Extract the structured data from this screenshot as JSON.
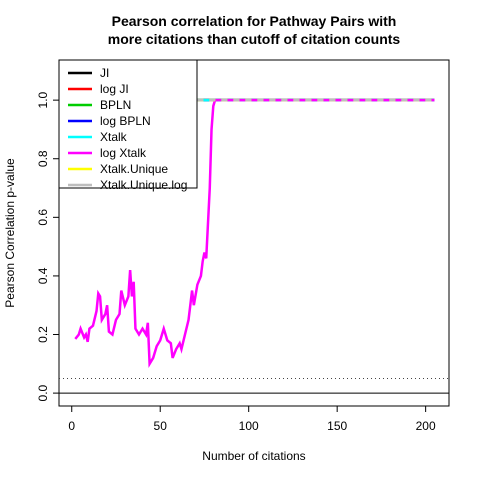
{
  "chart_data": {
    "type": "line",
    "title": [
      "Pearson correlation for Pathway Pairs with",
      "more citations than cutoff of citation counts"
    ],
    "xlabel": "Number of citations",
    "ylabel": "Pearson Correlation p-value",
    "x": [
      2,
      4,
      5,
      7,
      8,
      9,
      10,
      12,
      14,
      15,
      16,
      17,
      19,
      20,
      21,
      23,
      25,
      27,
      28,
      30,
      32,
      33,
      34,
      35,
      36,
      38,
      40,
      42,
      43,
      44,
      46,
      48,
      50,
      52,
      54,
      56,
      57,
      59,
      61,
      62,
      64,
      66,
      68,
      69,
      71,
      73,
      74,
      75,
      76,
      78,
      79,
      80,
      81,
      100,
      150,
      205
    ],
    "series": [
      {
        "name": "JI",
        "color": "#000000",
        "values": [
          null,
          null,
          null,
          null,
          null,
          null,
          null,
          null,
          null,
          null,
          null,
          null,
          null,
          null,
          null,
          null,
          null,
          null,
          null,
          null,
          null,
          null,
          null,
          null,
          null,
          null,
          null,
          null,
          null,
          null,
          null,
          null,
          null,
          null,
          null,
          null,
          null,
          null,
          null,
          null,
          null,
          null,
          null,
          null,
          1,
          1,
          1,
          1,
          1,
          1,
          1,
          1,
          1,
          1,
          1,
          1
        ]
      },
      {
        "name": "log JI",
        "color": "#ff0000",
        "values": [
          null,
          null,
          null,
          null,
          null,
          null,
          null,
          null,
          null,
          null,
          null,
          null,
          null,
          null,
          null,
          null,
          null,
          null,
          null,
          null,
          null,
          null,
          null,
          null,
          null,
          null,
          null,
          null,
          null,
          null,
          null,
          null,
          null,
          null,
          null,
          null,
          null,
          null,
          null,
          null,
          null,
          null,
          null,
          null,
          1,
          1,
          1,
          1,
          1,
          1,
          1,
          1,
          1,
          1,
          1,
          1
        ]
      },
      {
        "name": "BPLN",
        "color": "#00cd00",
        "values": [
          null,
          null,
          null,
          null,
          null,
          null,
          null,
          null,
          null,
          null,
          null,
          null,
          null,
          null,
          null,
          null,
          null,
          null,
          null,
          null,
          null,
          null,
          null,
          null,
          null,
          null,
          null,
          null,
          null,
          null,
          null,
          null,
          null,
          null,
          null,
          null,
          null,
          null,
          null,
          null,
          null,
          null,
          null,
          null,
          1,
          1,
          1,
          1,
          1,
          1,
          1,
          1,
          1,
          1,
          1,
          1
        ]
      },
      {
        "name": "log BPLN",
        "color": "#0000ff",
        "values": [
          null,
          null,
          null,
          null,
          null,
          null,
          null,
          null,
          null,
          null,
          null,
          null,
          null,
          null,
          null,
          null,
          null,
          null,
          null,
          null,
          null,
          null,
          null,
          null,
          null,
          null,
          null,
          null,
          null,
          null,
          null,
          null,
          null,
          null,
          null,
          null,
          null,
          null,
          null,
          null,
          null,
          null,
          null,
          null,
          1,
          1,
          1,
          1,
          1,
          1,
          1,
          1,
          1,
          1,
          1,
          1
        ]
      },
      {
        "name": "Xtalk",
        "color": "#00ffff",
        "values": [
          null,
          null,
          null,
          null,
          null,
          null,
          null,
          null,
          null,
          null,
          null,
          null,
          null,
          null,
          null,
          null,
          null,
          null,
          null,
          null,
          null,
          null,
          null,
          null,
          null,
          null,
          null,
          null,
          null,
          null,
          null,
          null,
          null,
          null,
          null,
          null,
          null,
          null,
          null,
          null,
          null,
          null,
          null,
          null,
          1,
          1,
          1,
          1,
          1,
          1,
          1,
          1,
          1,
          1,
          1,
          1
        ]
      },
      {
        "name": "log Xtalk",
        "color": "#ff00ff",
        "values": [
          0.185,
          0.2,
          0.22,
          0.19,
          0.2,
          0.175,
          0.22,
          0.23,
          0.28,
          0.34,
          0.33,
          0.25,
          0.27,
          0.3,
          0.21,
          0.2,
          0.25,
          0.27,
          0.35,
          0.3,
          0.33,
          0.42,
          0.33,
          0.38,
          0.22,
          0.2,
          0.22,
          0.2,
          0.24,
          0.1,
          0.12,
          0.16,
          0.18,
          0.22,
          0.18,
          0.17,
          0.12,
          0.15,
          0.17,
          0.15,
          0.2,
          0.25,
          0.35,
          0.3,
          0.37,
          0.4,
          0.45,
          0.48,
          0.46,
          0.7,
          0.9,
          0.98,
          1,
          1,
          1,
          1
        ]
      },
      {
        "name": "Xtalk.Unique",
        "color": "#ffff00",
        "values": [
          null,
          null,
          null,
          null,
          null,
          null,
          null,
          null,
          null,
          null,
          null,
          null,
          null,
          null,
          null,
          null,
          null,
          null,
          null,
          null,
          null,
          null,
          null,
          null,
          null,
          null,
          null,
          null,
          null,
          null,
          null,
          null,
          null,
          null,
          null,
          null,
          null,
          null,
          null,
          null,
          null,
          null,
          null,
          null,
          1,
          1,
          1,
          1,
          1,
          1,
          1,
          1,
          1,
          1,
          1,
          1
        ]
      },
      {
        "name": "Xtalk.Unique.log",
        "color": "#bebebe",
        "values": [
          null,
          null,
          null,
          null,
          null,
          null,
          null,
          null,
          null,
          null,
          null,
          null,
          null,
          null,
          null,
          null,
          null,
          null,
          null,
          null,
          null,
          null,
          null,
          null,
          null,
          null,
          null,
          null,
          null,
          null,
          null,
          null,
          null,
          null,
          null,
          null,
          null,
          null,
          null,
          null,
          null,
          null,
          null,
          null,
          1,
          1,
          1,
          1,
          1,
          1,
          1,
          1,
          1,
          1,
          1,
          1
        ]
      }
    ],
    "hlines": [
      0,
      0.05
    ],
    "xlim": [
      -7.2,
      213.2
    ],
    "ylim": [
      -0.044,
      1.137
    ],
    "xticks": [
      0,
      50,
      100,
      150,
      200
    ],
    "yticks": [
      {
        "value": 0,
        "label": "0.0"
      },
      0.2,
      0.4,
      0.6,
      0.8,
      {
        "value": 1,
        "label": "1.0"
      }
    ],
    "legend": "top-left"
  }
}
